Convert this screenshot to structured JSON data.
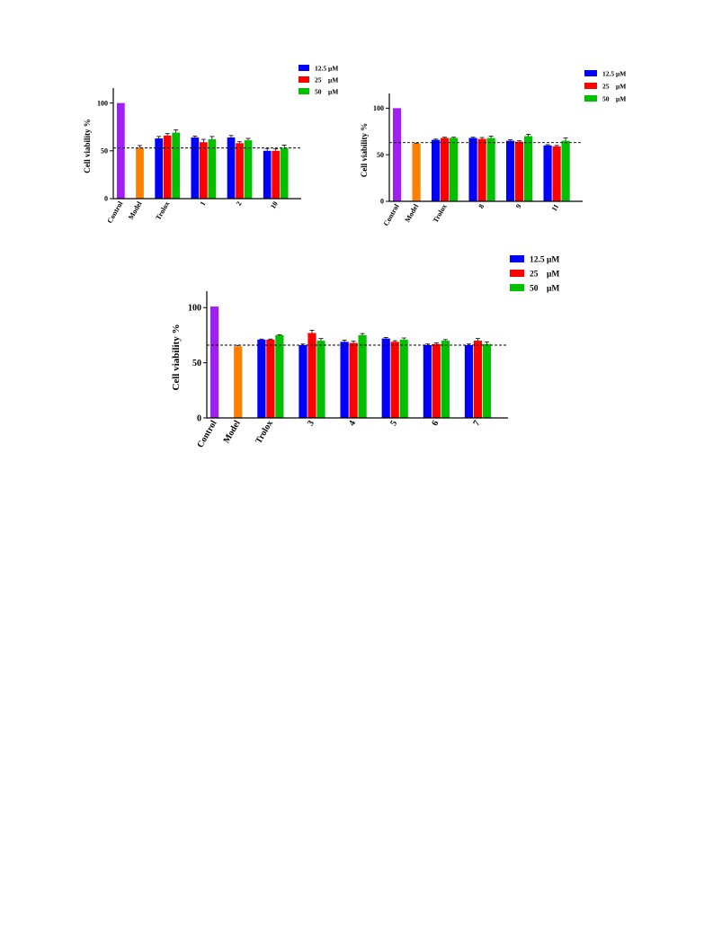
{
  "legend_unit_template": {
    "series_labels": [
      "12.5 μM",
      "25    μM",
      "50    μM"
    ]
  },
  "colors": {
    "control": "#a020f0",
    "model": "#ff8000",
    "s12_5": "#0000ff",
    "s25": "#ff0000",
    "s50": "#00c000",
    "errorbar": "#000000",
    "axis": "#000000"
  },
  "chart_data": [
    {
      "type": "bar",
      "ylabel": "Cell viability %",
      "ylim": [
        0,
        110
      ],
      "yticks": [
        0,
        50,
        100
      ],
      "control_label": "Control",
      "model_label": "Model",
      "control_value": 100,
      "model_value": 53,
      "model_error": 2.5,
      "dashed_reference": 53,
      "legend_placement": "top-right",
      "categories": [
        "Trolox",
        "1",
        "2",
        "10"
      ],
      "series": [
        {
          "name": "12.5 μM",
          "values": [
            63,
            64,
            64,
            50
          ],
          "errors": [
            2,
            1.5,
            2,
            2.5
          ]
        },
        {
          "name": "25    μM",
          "values": [
            66,
            59,
            58,
            50
          ],
          "errors": [
            2,
            3,
            1.5,
            2
          ]
        },
        {
          "name": "50    μM",
          "values": [
            69,
            62,
            61,
            53
          ],
          "errors": [
            3,
            3,
            2,
            3
          ]
        }
      ]
    },
    {
      "type": "bar",
      "ylabel": "Cell viability %",
      "ylim": [
        0,
        110
      ],
      "yticks": [
        0,
        50,
        100
      ],
      "control_label": "Control",
      "model_label": "Model",
      "control_value": 100,
      "model_value": 62,
      "model_error": 0.5,
      "dashed_reference": 63,
      "legend_placement": "top-right",
      "categories": [
        "Trolox",
        "8",
        "9",
        "11"
      ],
      "series": [
        {
          "name": "12.5 μM",
          "values": [
            66,
            68,
            65,
            60
          ],
          "errors": [
            0.8,
            0.8,
            1,
            0.8
          ]
        },
        {
          "name": "25    μM",
          "values": [
            68,
            67,
            64,
            59
          ],
          "errors": [
            0.8,
            1.5,
            1,
            1
          ]
        },
        {
          "name": "50    μM",
          "values": [
            68,
            68,
            70,
            65
          ],
          "errors": [
            0.8,
            2,
            2,
            3
          ]
        }
      ]
    },
    {
      "type": "bar",
      "ylabel": "Cell viability %",
      "ylim": [
        0,
        110
      ],
      "yticks": [
        0,
        50,
        100
      ],
      "control_label": "Control",
      "model_label": "Model",
      "control_value": 101,
      "model_value": 65,
      "model_error": 0.8,
      "dashed_reference": 66,
      "legend_placement": "top-right",
      "categories": [
        "Trolox",
        "3",
        "4",
        "5",
        "6",
        "7"
      ],
      "series": [
        {
          "name": "12.5 μM",
          "values": [
            71,
            66,
            69,
            72,
            66,
            66
          ],
          "errors": [
            0.5,
            1,
            1.5,
            1,
            1,
            1
          ]
        },
        {
          "name": "25    μM",
          "values": [
            71,
            77,
            68,
            69,
            67,
            70
          ],
          "errors": [
            0.5,
            2.5,
            1.5,
            1,
            1,
            2
          ]
        },
        {
          "name": "50    μM",
          "values": [
            75,
            70,
            75,
            71,
            70,
            67
          ],
          "errors": [
            0.5,
            2,
            1.5,
            1.5,
            1,
            2
          ]
        }
      ]
    }
  ]
}
